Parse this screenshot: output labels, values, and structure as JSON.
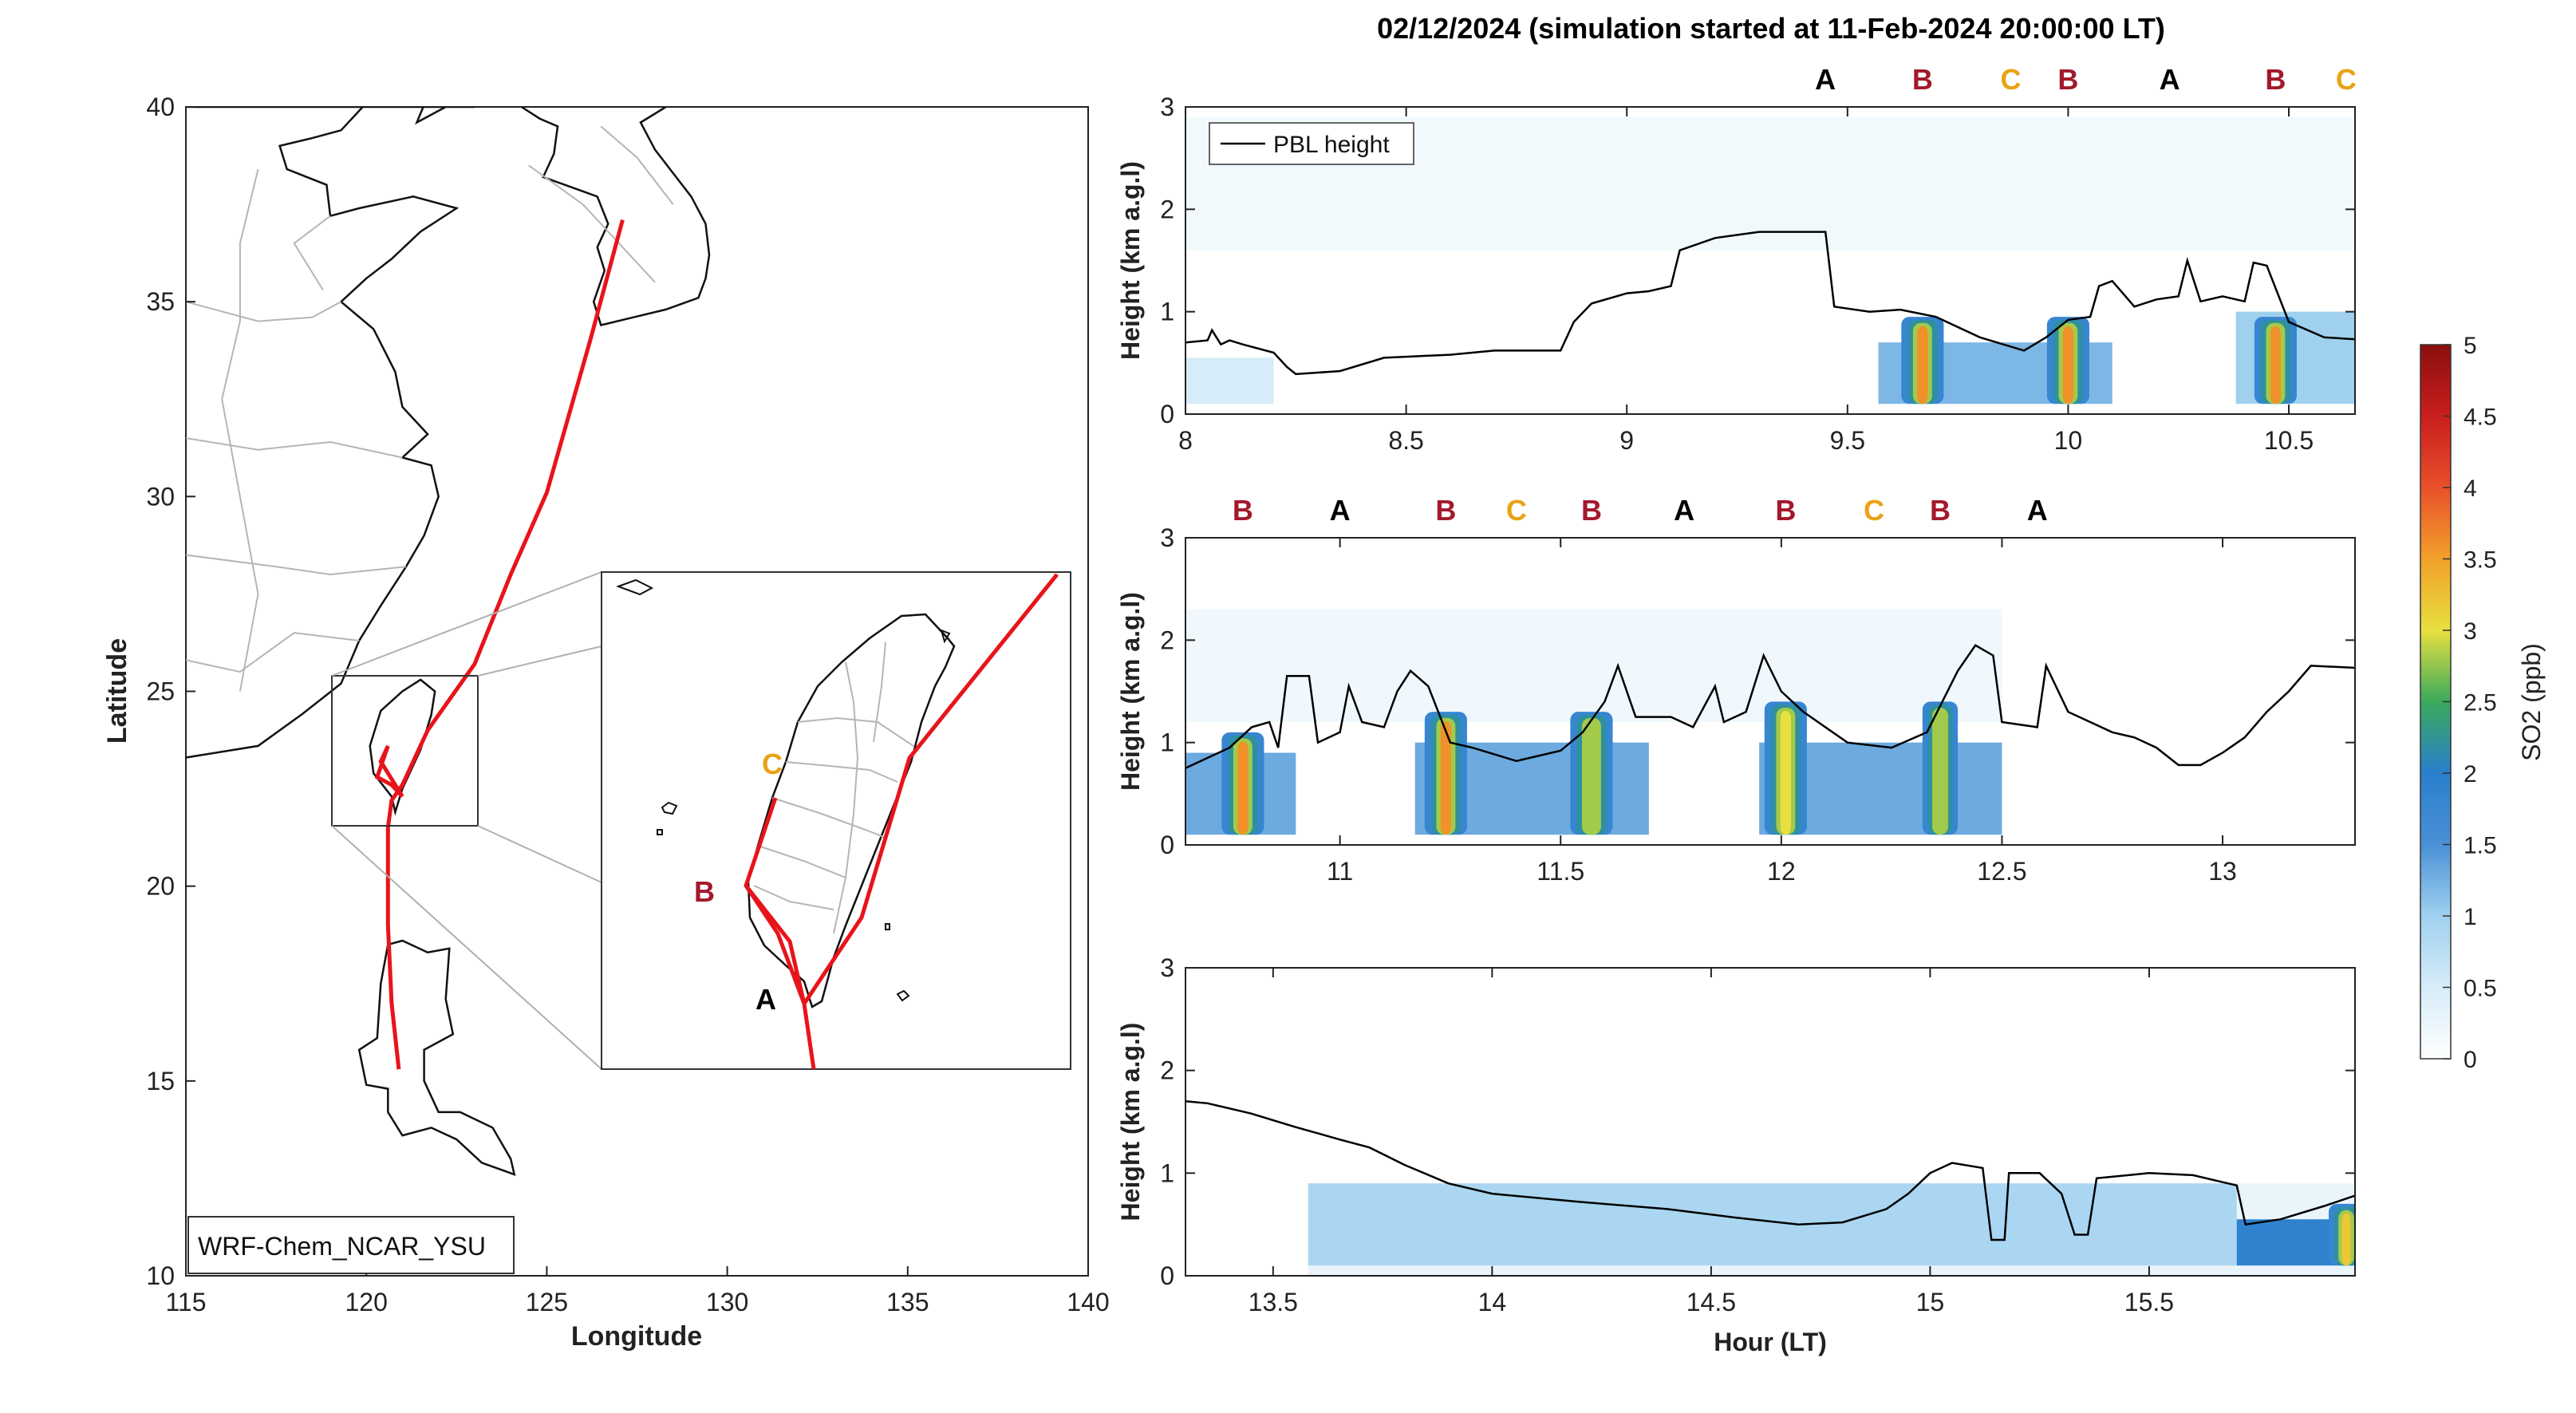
{
  "figure": {
    "title": "02/12/2024 (simulation started at 11-Feb-2024 20:00:00 LT)"
  },
  "map": {
    "xlabel": "Longitude",
    "ylabel": "Latitude",
    "xlim": [
      115,
      140
    ],
    "ylim": [
      10,
      40
    ],
    "xticks": [
      "115",
      "120",
      "125",
      "130",
      "135",
      "140"
    ],
    "yticks": [
      "10",
      "15",
      "20",
      "25",
      "30",
      "35",
      "40"
    ],
    "model_label": "WRF-Chem_NCAR_YSU",
    "flight_color": "#e8141b",
    "inset_region": {
      "lon": [
        119.2,
        123.2
      ],
      "lat": [
        21.5,
        26.5
      ]
    },
    "inset_labels": [
      {
        "text": "C",
        "color": "#e8a317"
      },
      {
        "text": "B",
        "color": "#a3192c"
      },
      {
        "text": "A",
        "color": "#000000"
      }
    ]
  },
  "chart_data": [
    {
      "type": "heatmap",
      "panel": "top",
      "xlim": [
        8,
        10.65
      ],
      "ylim": [
        0,
        3
      ],
      "xticks": [
        "8",
        "8.5",
        "9",
        "9.5",
        "10",
        "10.5"
      ],
      "yticks": [
        "0",
        "1",
        "2",
        "3"
      ],
      "ylabel": "Height (km a.g.l)",
      "legend": "PBL height",
      "legend_position": "top-left",
      "site_labels": [
        {
          "text": "A",
          "x": 9.45
        },
        {
          "text": "B",
          "x": 9.67
        },
        {
          "text": "C",
          "x": 9.87
        },
        {
          "text": "B",
          "x": 10.0
        },
        {
          "text": "A",
          "x": 10.23
        },
        {
          "text": "B",
          "x": 10.47
        },
        {
          "text": "C",
          "x": 10.63
        }
      ],
      "pbl_height": [
        [
          8.0,
          0.7
        ],
        [
          8.05,
          0.72
        ],
        [
          8.06,
          0.82
        ],
        [
          8.08,
          0.68
        ],
        [
          8.1,
          0.72
        ],
        [
          8.13,
          0.68
        ],
        [
          8.2,
          0.6
        ],
        [
          8.23,
          0.46
        ],
        [
          8.25,
          0.39
        ],
        [
          8.35,
          0.42
        ],
        [
          8.45,
          0.55
        ],
        [
          8.6,
          0.58
        ],
        [
          8.7,
          0.62
        ],
        [
          8.85,
          0.62
        ],
        [
          8.88,
          0.9
        ],
        [
          8.92,
          1.08
        ],
        [
          9.0,
          1.18
        ],
        [
          9.05,
          1.2
        ],
        [
          9.1,
          1.25
        ],
        [
          9.12,
          1.6
        ],
        [
          9.2,
          1.72
        ],
        [
          9.3,
          1.78
        ],
        [
          9.45,
          1.78
        ],
        [
          9.47,
          1.05
        ],
        [
          9.55,
          1.0
        ],
        [
          9.62,
          1.02
        ],
        [
          9.7,
          0.95
        ],
        [
          9.8,
          0.75
        ],
        [
          9.9,
          0.62
        ],
        [
          9.95,
          0.75
        ],
        [
          10.0,
          0.92
        ],
        [
          10.05,
          0.95
        ],
        [
          10.07,
          1.25
        ],
        [
          10.1,
          1.3
        ],
        [
          10.15,
          1.05
        ],
        [
          10.2,
          1.12
        ],
        [
          10.25,
          1.15
        ],
        [
          10.27,
          1.5
        ],
        [
          10.3,
          1.1
        ],
        [
          10.35,
          1.15
        ],
        [
          10.4,
          1.1
        ],
        [
          10.42,
          1.48
        ],
        [
          10.45,
          1.45
        ],
        [
          10.5,
          0.9
        ],
        [
          10.58,
          0.75
        ],
        [
          10.65,
          0.73
        ]
      ],
      "so2_plumes": [
        {
          "x_center": 9.67,
          "width": 0.06,
          "peak_ppb": 3.6,
          "top_km": 0.95
        },
        {
          "x_center": 10.0,
          "width": 0.06,
          "peak_ppb": 3.6,
          "top_km": 0.95
        },
        {
          "x_center": 10.47,
          "width": 0.06,
          "peak_ppb": 3.6,
          "top_km": 0.95
        }
      ],
      "so2_background": [
        {
          "x": [
            9.57,
            10.1
          ],
          "level_ppb": 1.2,
          "top_km": 0.7
        },
        {
          "x": [
            10.38,
            10.65
          ],
          "level_ppb": 1.0,
          "top_km": 1.0
        },
        {
          "x": [
            8.0,
            8.2
          ],
          "level_ppb": 0.5,
          "top_km": 0.55
        }
      ]
    },
    {
      "type": "heatmap",
      "panel": "middle",
      "xlim": [
        10.65,
        13.3
      ],
      "ylim": [
        0,
        3
      ],
      "xticks": [
        "11",
        "11.5",
        "12",
        "12.5",
        "13"
      ],
      "yticks": [
        "0",
        "1",
        "2",
        "3"
      ],
      "ylabel": "Height (km a.g.l)",
      "site_labels": [
        {
          "text": "B",
          "x": 10.78
        },
        {
          "text": "A",
          "x": 11.0
        },
        {
          "text": "B",
          "x": 11.24
        },
        {
          "text": "C",
          "x": 11.4
        },
        {
          "text": "B",
          "x": 11.57
        },
        {
          "text": "A",
          "x": 11.78
        },
        {
          "text": "B",
          "x": 12.01
        },
        {
          "text": "C",
          "x": 12.21
        },
        {
          "text": "B",
          "x": 12.36
        },
        {
          "text": "A",
          "x": 12.58
        }
      ],
      "pbl_height": [
        [
          10.65,
          0.75
        ],
        [
          10.7,
          0.85
        ],
        [
          10.75,
          0.95
        ],
        [
          10.8,
          1.15
        ],
        [
          10.84,
          1.2
        ],
        [
          10.86,
          0.95
        ],
        [
          10.88,
          1.65
        ],
        [
          10.93,
          1.65
        ],
        [
          10.95,
          1.0
        ],
        [
          11.0,
          1.1
        ],
        [
          11.02,
          1.55
        ],
        [
          11.05,
          1.2
        ],
        [
          11.1,
          1.15
        ],
        [
          11.13,
          1.5
        ],
        [
          11.16,
          1.7
        ],
        [
          11.2,
          1.55
        ],
        [
          11.25,
          1.0
        ],
        [
          11.3,
          0.95
        ],
        [
          11.4,
          0.82
        ],
        [
          11.5,
          0.92
        ],
        [
          11.55,
          1.1
        ],
        [
          11.6,
          1.4
        ],
        [
          11.63,
          1.75
        ],
        [
          11.67,
          1.25
        ],
        [
          11.75,
          1.25
        ],
        [
          11.8,
          1.15
        ],
        [
          11.85,
          1.55
        ],
        [
          11.87,
          1.2
        ],
        [
          11.92,
          1.3
        ],
        [
          11.96,
          1.85
        ],
        [
          12.0,
          1.5
        ],
        [
          12.05,
          1.3
        ],
        [
          12.15,
          1.0
        ],
        [
          12.25,
          0.95
        ],
        [
          12.33,
          1.1
        ],
        [
          12.4,
          1.7
        ],
        [
          12.44,
          1.95
        ],
        [
          12.48,
          1.85
        ],
        [
          12.5,
          1.2
        ],
        [
          12.58,
          1.15
        ],
        [
          12.6,
          1.75
        ],
        [
          12.65,
          1.3
        ],
        [
          12.7,
          1.2
        ],
        [
          12.75,
          1.1
        ],
        [
          12.8,
          1.05
        ],
        [
          12.85,
          0.95
        ],
        [
          12.9,
          0.78
        ],
        [
          12.95,
          0.78
        ],
        [
          13.0,
          0.9
        ],
        [
          13.05,
          1.05
        ],
        [
          13.1,
          1.3
        ],
        [
          13.15,
          1.5
        ],
        [
          13.2,
          1.75
        ],
        [
          13.3,
          1.73
        ]
      ],
      "so2_plumes": [
        {
          "x_center": 10.78,
          "width": 0.06,
          "peak_ppb": 3.6,
          "top_km": 1.1
        },
        {
          "x_center": 11.24,
          "width": 0.06,
          "peak_ppb": 3.6,
          "top_km": 1.3
        },
        {
          "x_center": 11.57,
          "width": 0.06,
          "peak_ppb": 2.8,
          "top_km": 1.3
        },
        {
          "x_center": 12.01,
          "width": 0.06,
          "peak_ppb": 3.0,
          "top_km": 1.4
        },
        {
          "x_center": 12.36,
          "width": 0.05,
          "peak_ppb": 2.8,
          "top_km": 1.4
        }
      ],
      "so2_background": [
        {
          "x": [
            10.65,
            10.9
          ],
          "level_ppb": 1.3,
          "top_km": 0.9
        },
        {
          "x": [
            11.17,
            11.7
          ],
          "level_ppb": 1.3,
          "top_km": 1.0
        },
        {
          "x": [
            11.95,
            12.5
          ],
          "level_ppb": 1.3,
          "top_km": 1.0
        }
      ]
    },
    {
      "type": "heatmap",
      "panel": "bottom",
      "xlim": [
        13.3,
        15.97
      ],
      "ylim": [
        0,
        3
      ],
      "xticks": [
        "13.5",
        "14",
        "14.5",
        "15",
        "15.5"
      ],
      "yticks": [
        "0",
        "1",
        "2",
        "3"
      ],
      "ylabel": "Height (km a.g.l)",
      "xlabel": "Hour (LT)",
      "pbl_height": [
        [
          13.3,
          1.7
        ],
        [
          13.35,
          1.68
        ],
        [
          13.45,
          1.58
        ],
        [
          13.55,
          1.45
        ],
        [
          13.65,
          1.33
        ],
        [
          13.72,
          1.25
        ],
        [
          13.8,
          1.08
        ],
        [
          13.9,
          0.9
        ],
        [
          14.0,
          0.8
        ],
        [
          14.2,
          0.72
        ],
        [
          14.4,
          0.65
        ],
        [
          14.55,
          0.57
        ],
        [
          14.7,
          0.5
        ],
        [
          14.8,
          0.52
        ],
        [
          14.9,
          0.65
        ],
        [
          14.95,
          0.8
        ],
        [
          15.0,
          1.0
        ],
        [
          15.05,
          1.1
        ],
        [
          15.12,
          1.05
        ],
        [
          15.14,
          0.35
        ],
        [
          15.17,
          0.35
        ],
        [
          15.18,
          1.0
        ],
        [
          15.25,
          1.0
        ],
        [
          15.3,
          0.8
        ],
        [
          15.33,
          0.4
        ],
        [
          15.36,
          0.4
        ],
        [
          15.38,
          0.95
        ],
        [
          15.5,
          1.0
        ],
        [
          15.6,
          0.98
        ],
        [
          15.7,
          0.88
        ],
        [
          15.72,
          0.5
        ],
        [
          15.8,
          0.55
        ],
        [
          15.9,
          0.68
        ],
        [
          15.97,
          0.78
        ]
      ],
      "so2_plumes": [
        {
          "x_center": 15.95,
          "width": 0.05,
          "peak_ppb": 3.2,
          "top_km": 0.7
        }
      ],
      "so2_background": [
        {
          "x": [
            13.58,
            15.7
          ],
          "level_ppb": 0.9,
          "top_km": 0.9
        },
        {
          "x": [
            15.7,
            15.97
          ],
          "level_ppb": 1.9,
          "top_km": 0.55
        }
      ]
    }
  ],
  "colorbar": {
    "label": "SO2 (ppb)",
    "ticks": [
      "0",
      "0.5",
      "1",
      "1.5",
      "2",
      "2.5",
      "3",
      "3.5",
      "4",
      "4.5",
      "5"
    ],
    "range": [
      0,
      5
    ],
    "colors": [
      "#ffffff",
      "#d6ecf8",
      "#9fd1ef",
      "#4a90d6",
      "#2a7fcd",
      "#3aaa5c",
      "#e8e040",
      "#f2a12a",
      "#e8502a",
      "#c91e1e",
      "#8b0e0e"
    ]
  }
}
